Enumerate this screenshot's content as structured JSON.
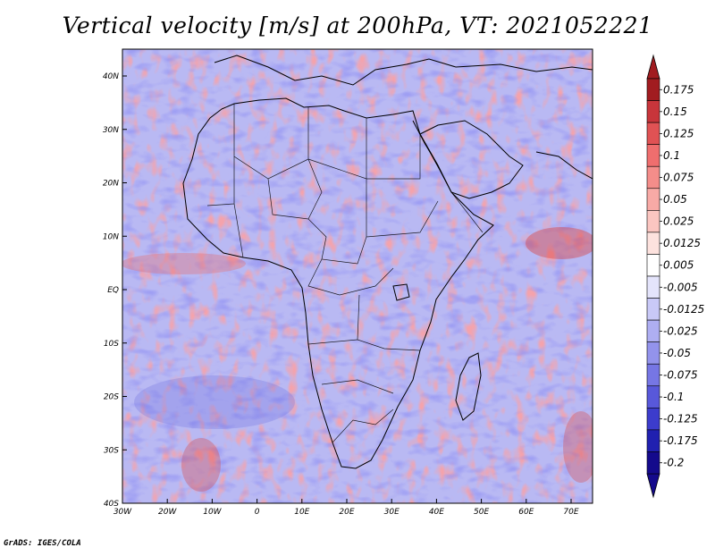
{
  "title": "Vertical velocity [m/s] at 200hPa, VT: 2021052221",
  "footer": "GrADS: IGES/COLA",
  "map": {
    "region": "Africa",
    "lat_labels": [
      "40N",
      "30N",
      "20N",
      "10N",
      "EQ",
      "10S",
      "20S",
      "30S",
      "40S"
    ],
    "lon_labels": [
      "30W",
      "20W",
      "10W",
      "0",
      "10E",
      "20E",
      "30E",
      "40E",
      "50E",
      "60E",
      "70E"
    ]
  },
  "colorbar": {
    "labels": [
      "0.175",
      "0.15",
      "0.125",
      "0.1",
      "0.075",
      "0.05",
      "0.025",
      "0.0125",
      "0.005",
      "-0.005",
      "-0.0125",
      "-0.025",
      "-0.05",
      "-0.075",
      "-0.1",
      "-0.125",
      "-0.175",
      "-0.2"
    ],
    "colors": [
      "#a11c20",
      "#c8353b",
      "#e05254",
      "#ef6e6e",
      "#f48d8a",
      "#f8aaa6",
      "#fbc6c1",
      "#fde2de",
      "#ffffff",
      "#e4e4fb",
      "#c9c9f7",
      "#aeaef2",
      "#9393ec",
      "#7676e4",
      "#5858da",
      "#3c3ccc",
      "#2020b0",
      "#140a8c"
    ]
  },
  "colors": {
    "positive": "#e05254",
    "negative": "#5858da",
    "coastline": "#000000"
  }
}
